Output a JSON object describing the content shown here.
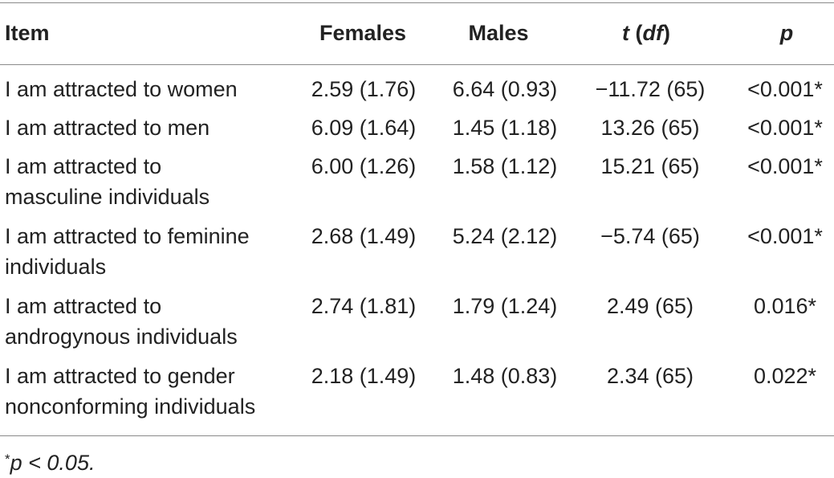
{
  "table": {
    "headers": {
      "item": "Item",
      "females": "Females",
      "males": "Males",
      "t_main": "t",
      "t_df": "(df)",
      "p": "p"
    },
    "rows": [
      {
        "item_line1": "I am attracted to women",
        "item_line2": "",
        "females": "2.59 (1.76)",
        "males": "6.64 (0.93)",
        "t": "−11.72 (65)",
        "p": "<0.001*"
      },
      {
        "item_line1": "I am attracted to men",
        "item_line2": "",
        "females": "6.09 (1.64)",
        "males": "1.45 (1.18)",
        "t": "13.26 (65)",
        "p": "<0.001*"
      },
      {
        "item_line1": "I am attracted to",
        "item_line2": "masculine individuals",
        "females": "6.00 (1.26)",
        "males": "1.58 (1.12)",
        "t": "15.21 (65)",
        "p": "<0.001*"
      },
      {
        "item_line1": "I am attracted to feminine",
        "item_line2": "individuals",
        "females": "2.68 (1.49)",
        "males": "5.24 (2.12)",
        "t": "−5.74 (65)",
        "p": "<0.001*"
      },
      {
        "item_line1": "I am attracted to",
        "item_line2": "androgynous individuals",
        "females": "2.74 (1.81)",
        "males": "1.79 (1.24)",
        "t": "2.49 (65)",
        "p": "0.016*"
      },
      {
        "item_line1": "I am attracted to gender",
        "item_line2": "nonconforming individuals",
        "females": "2.18 (1.49)",
        "males": "1.48 (0.83)",
        "t": "2.34 (65)",
        "p": "0.022*"
      }
    ],
    "footnote": {
      "marker": "*",
      "text": "p < 0.05."
    }
  }
}
